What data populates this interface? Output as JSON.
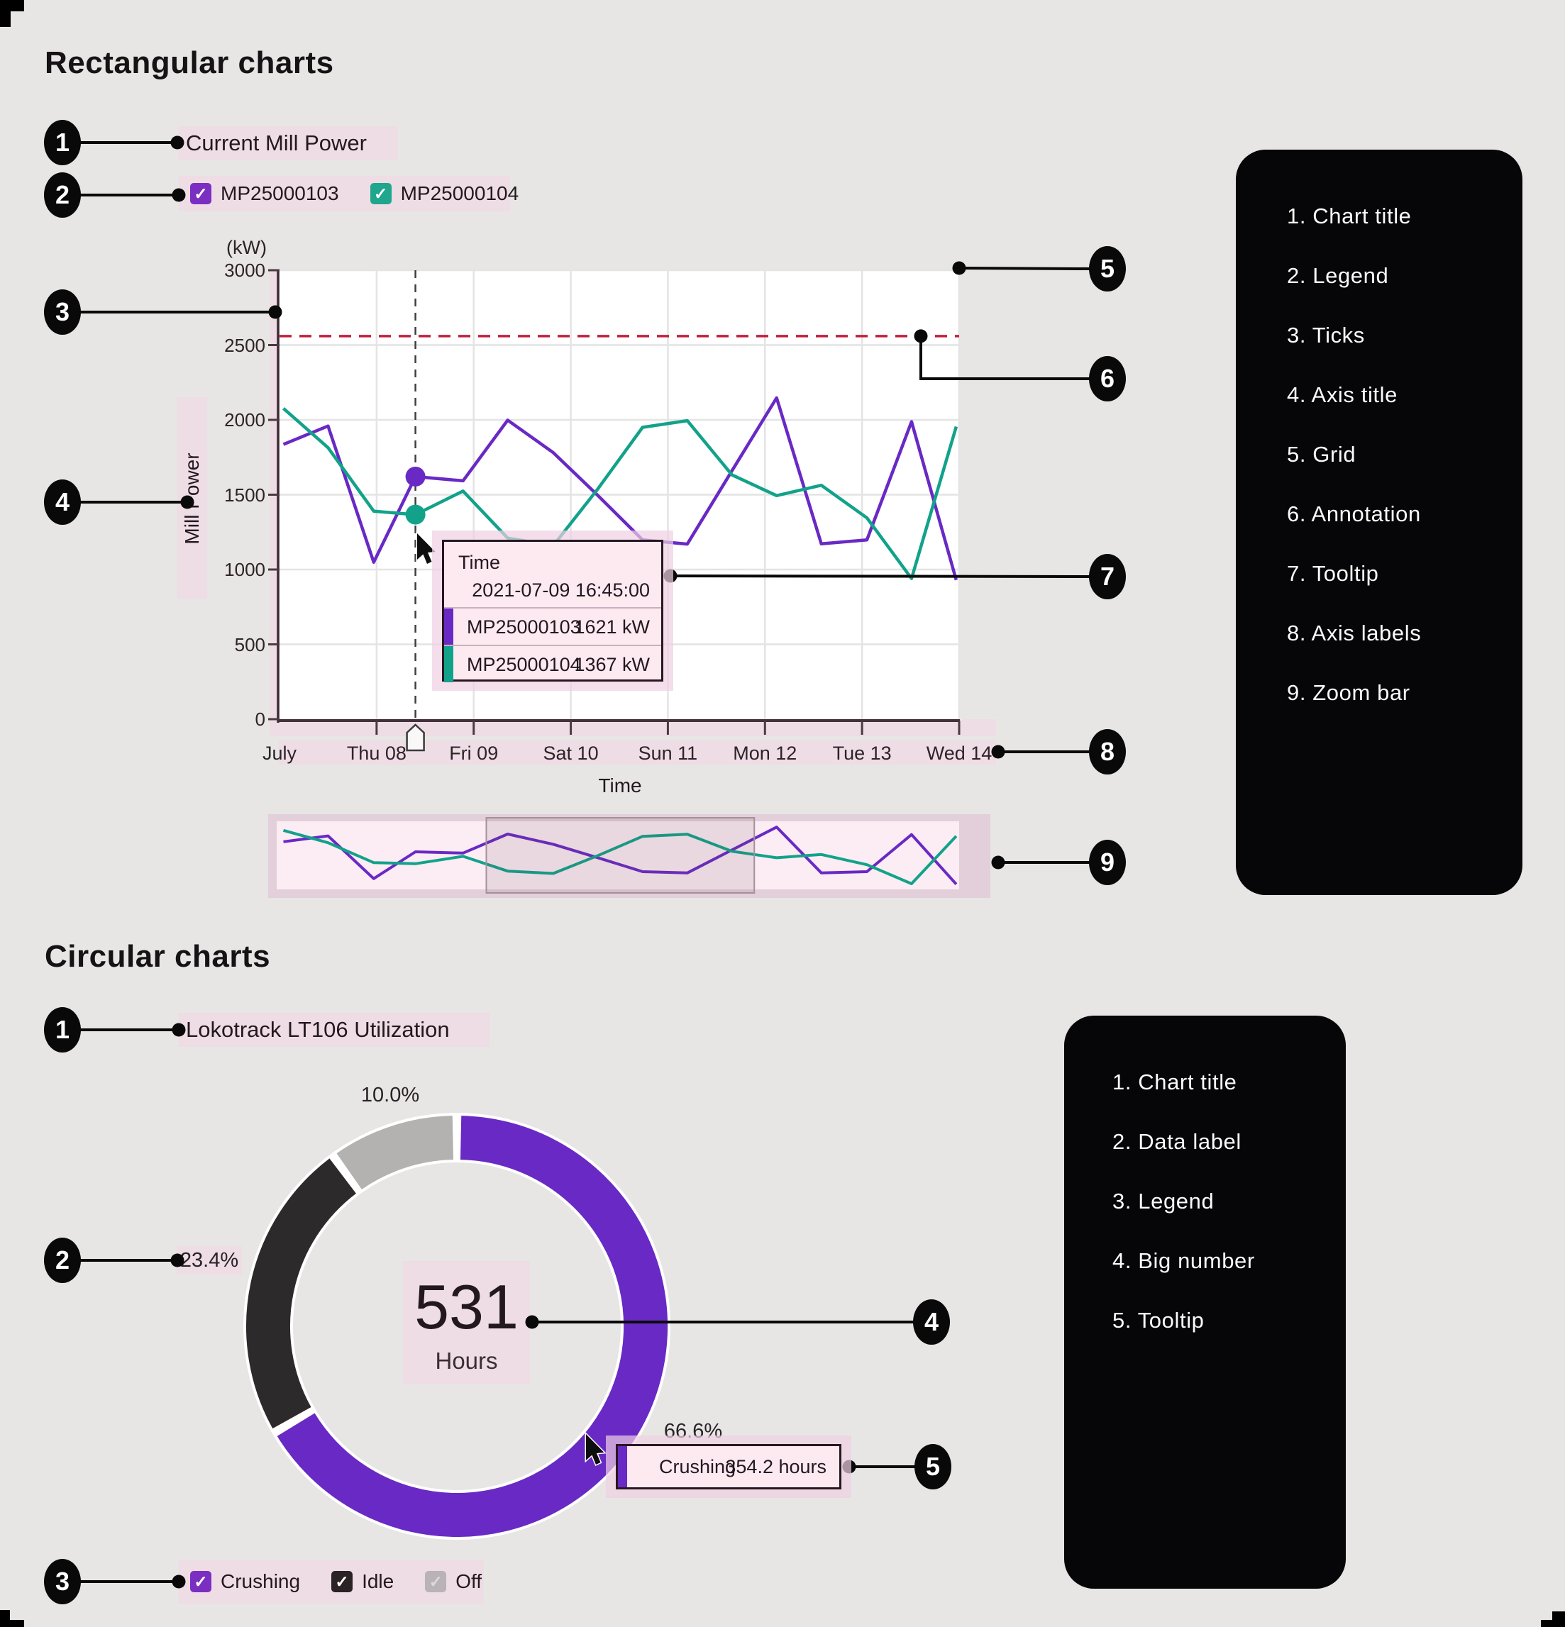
{
  "sections": {
    "rect": {
      "heading": "Rectangular charts"
    },
    "circ": {
      "heading": "Circular charts"
    }
  },
  "chart_data": [
    {
      "type": "line",
      "title": "Current Mill Power",
      "unit_label": "(kW)",
      "ylabel": "Mill Power",
      "xlabel": "Time",
      "ylim": [
        0,
        3000
      ],
      "yticks": [
        0,
        500,
        1000,
        1500,
        2000,
        2500,
        3000
      ],
      "xtick_labels": [
        "July",
        "Thu 08",
        "Fri 09",
        "Sat 10",
        "Sun 11",
        "Mon 12",
        "Tue 13",
        "Wed 14"
      ],
      "grid": true,
      "annotation_line_kw": 2560,
      "annotation_color": "#c3203e",
      "series": [
        {
          "name": "MP25000103",
          "color": "#6929c4",
          "points": [
            [
              0.04,
              1836
            ],
            [
              0.5,
              1959
            ],
            [
              0.97,
              1049
            ],
            [
              1.4,
              1621
            ],
            [
              1.89,
              1593
            ],
            [
              2.35,
              1998
            ],
            [
              2.82,
              1781
            ],
            [
              3.28,
              1494
            ],
            [
              3.74,
              1198
            ],
            [
              4.2,
              1170
            ],
            [
              4.66,
              1660
            ],
            [
              5.12,
              2147
            ],
            [
              5.58,
              1172
            ],
            [
              6.05,
              1198
            ],
            [
              6.51,
              1988
            ],
            [
              6.97,
              930
            ]
          ]
        },
        {
          "name": "MP25000104",
          "color": "#12a28a",
          "points": [
            [
              0.04,
              2077
            ],
            [
              0.5,
              1814
            ],
            [
              0.97,
              1390
            ],
            [
              1.4,
              1367
            ],
            [
              1.89,
              1524
            ],
            [
              2.35,
              1210
            ],
            [
              2.82,
              1160
            ],
            [
              3.28,
              1540
            ],
            [
              3.74,
              1950
            ],
            [
              4.2,
              1995
            ],
            [
              4.66,
              1632
            ],
            [
              5.12,
              1494
            ],
            [
              5.58,
              1563
            ],
            [
              6.05,
              1345
            ],
            [
              6.51,
              940
            ],
            [
              6.97,
              1955
            ]
          ]
        }
      ],
      "cursor_day": 1.4,
      "cursor_values": {
        "MP25000103": 1621,
        "MP25000104": 1367
      },
      "tooltip": {
        "header": "Time",
        "datetime": "2021-07-09 16:45:00",
        "rows": [
          {
            "label": "MP25000103",
            "value": "1621 kW",
            "color": "#6929c4"
          },
          {
            "label": "MP25000104",
            "value": "1367 kW",
            "color": "#12a28a"
          }
        ]
      },
      "legend": [
        {
          "label": "MP25000103",
          "color": "#7b2fc2",
          "check": "#ffffff",
          "checked": true
        },
        {
          "label": "MP25000104",
          "color": "#1fa68c",
          "check": "#ffffff",
          "checked": true
        }
      ],
      "zoom_window_days": [
        2.13,
        4.89
      ]
    },
    {
      "type": "pie",
      "title": "Lokotrack LT106 Utilization",
      "slices": [
        {
          "label": "Crushing",
          "percent": 66.6,
          "hours": 354.2,
          "color": "#6929c4"
        },
        {
          "label": "Idle",
          "percent": 23.4,
          "color": "#2d2a2c"
        },
        {
          "label": "Off",
          "percent": 10.0,
          "color": "#b3b2b1"
        }
      ],
      "data_labels": [
        "10.0%",
        "23.4%",
        "66.6%"
      ],
      "big_number": {
        "value": "531",
        "unit": "Hours"
      },
      "tooltip": {
        "label": "Crushing",
        "value": "354.2 hours",
        "color": "#6929c4"
      },
      "legend": [
        {
          "label": "Crushing",
          "color": "#7b2fc2",
          "check": "#ffffff",
          "checked": true
        },
        {
          "label": "Idle",
          "color": "#2b2226",
          "check": "#ffffff",
          "checked": true
        },
        {
          "label": "Off",
          "color": "#b9b2b6",
          "check": "#ddd6da",
          "checked": true
        }
      ]
    }
  ],
  "rect_panel": {
    "items": [
      "1. Chart title",
      "2. Legend",
      "3. Ticks",
      "4. Axis title",
      "5. Grid",
      "6. Annotation",
      "7. Tooltip",
      "8. Axis labels",
      "9. Zoom bar"
    ]
  },
  "circ_panel": {
    "items": [
      "1. Chart title",
      "2. Data label",
      "3. Legend",
      "4. Big number",
      "5. Tooltip"
    ]
  },
  "rect_callouts": [
    "1",
    "2",
    "3",
    "4",
    "5",
    "6",
    "7",
    "8",
    "9"
  ],
  "circ_callouts": [
    "1",
    "2",
    "3",
    "4",
    "5"
  ]
}
